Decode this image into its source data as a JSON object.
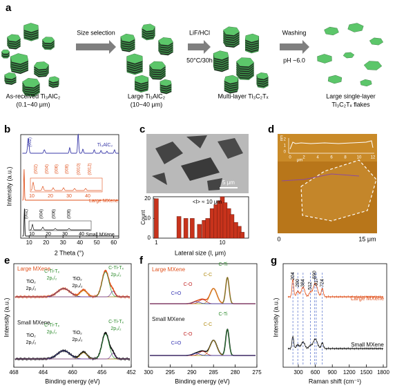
{
  "panels": {
    "a": {
      "label": "a",
      "arrow1": {
        "top": "Size selection"
      },
      "arrow2": {
        "top": "LiF/HCl",
        "bottom": "50°C/30h"
      },
      "arrow3": {
        "top": "Washing",
        "bottom": "pH ~6.0"
      },
      "captions": [
        [
          "As-received Ti₃AlC₂",
          "(0.1~40 μm)"
        ],
        [
          "Large Ti₃AlC₂",
          "(10~40 μm)"
        ],
        [
          "Multi-layer Ti₃C₂Tₓ"
        ],
        [
          "Large single-layer",
          "Ti₃C₂Tₓ flakes"
        ]
      ]
    },
    "b": {
      "label": "b",
      "y_label": "Intensity (a.u.)",
      "x_label": "2 Theta (°)",
      "xticks": [
        "10",
        "20",
        "30",
        "40",
        "50",
        "60"
      ],
      "top_peak": "(002)",
      "top_name": "Ti₃AlC₂",
      "large_peaks": [
        "(002)",
        "(004)",
        "(006)",
        "(008)",
        "(0010)",
        "(0012)"
      ],
      "large_name": "Large MXene",
      "large_inset_ticks": [
        "10",
        "20",
        "30",
        "40"
      ],
      "small_peaks": [
        "(002)",
        "(004)",
        "(006)",
        "(008)"
      ],
      "small_name": "Small MXene",
      "small_inset_ticks": [
        "10",
        "20",
        "30",
        "40"
      ]
    },
    "c": {
      "label": "c",
      "scale_bar": "5 μm",
      "annotation": "<l> ≈ 10 μm",
      "y_label": "Count",
      "x_label": "Lateral size (l, μm)",
      "histogram": {
        "x": [
          1,
          2.2,
          2.8,
          3.5,
          4.5,
          5.3,
          6,
          7,
          8,
          9,
          10,
          11,
          12.5,
          14,
          16,
          18,
          20
        ],
        "counts": [
          20,
          11,
          10,
          10,
          7,
          9,
          10,
          15,
          17,
          19,
          21,
          18,
          15,
          12,
          8,
          6,
          3
        ],
        "xlim": [
          0.9,
          25
        ],
        "ylim": [
          0,
          21
        ],
        "xticks": [
          1,
          10
        ],
        "yticks": [
          0,
          10,
          20
        ]
      }
    },
    "d": {
      "label": "d",
      "profile_unit_y": "nm",
      "profile_yticks": [
        "0",
        "1",
        "2"
      ],
      "profile_xticks": [
        "0",
        "2",
        "4",
        "6",
        "8",
        "10",
        "12"
      ],
      "profile_unit_x": "μm",
      "axis_start": "0",
      "axis_end": "15 μm"
    },
    "e": {
      "label": "e",
      "large": "Large MXene",
      "small": "Small MXene",
      "large_labels": [
        [
          "TiO₂",
          "2p₁/₂"
        ],
        [
          "C-Ti-Tₓ",
          "2p₁/₂"
        ],
        [
          "TiO₂",
          "2p₃/₂"
        ],
        [
          "C-Ti-Tₓ",
          "2p₃/₂"
        ]
      ],
      "small_labels": [
        [
          "TiO₂",
          "2p₁/₂"
        ],
        [
          "C-Ti-Tₓ",
          "2p₁/₂"
        ],
        [
          "TiO₂",
          "2p₃/₂"
        ],
        [
          "C-Ti-Tₓ",
          "2p₃/₂"
        ]
      ],
      "y_label": "Intensity (a.u.)",
      "x_label": "Binding energy (eV)",
      "xticks": [
        "468",
        "464",
        "460",
        "456",
        "452"
      ]
    },
    "f": {
      "label": "f",
      "large": "Large MXene",
      "small": "Small MXene",
      "large_peaks": [
        "C=O",
        "C-O",
        "C-C",
        "C-Ti"
      ],
      "small_peaks": [
        "C=O",
        "C-O",
        "C-C",
        "C-Ti"
      ],
      "x_label": "Binding energy (eV)",
      "xticks": [
        "300",
        "295",
        "290",
        "285",
        "280",
        "275"
      ]
    },
    "g": {
      "label": "g",
      "peaks": [
        "204",
        "290",
        "384",
        "512",
        "590",
        "617",
        "724"
      ],
      "large": "Large MXene",
      "small": "Small MXene",
      "y_label": "Intensity (a.u.)",
      "x_label": "Raman shift (cm⁻¹)",
      "xticks": [
        "300",
        "600",
        "900",
        "1200",
        "1500",
        "1800"
      ]
    }
  }
}
